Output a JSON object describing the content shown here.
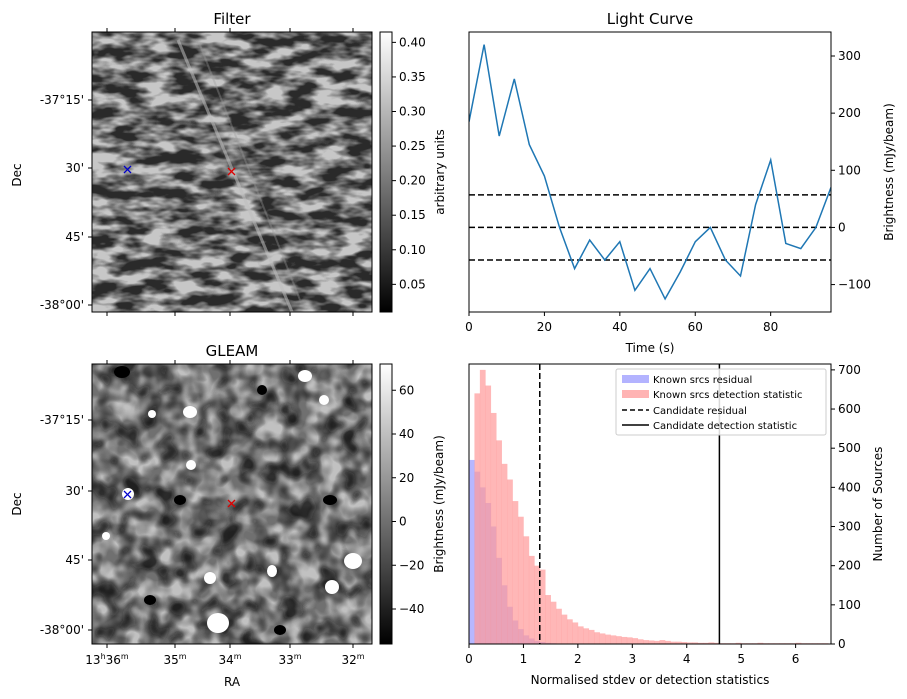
{
  "colors": {
    "line": "#1f77b4",
    "known_residual": "#0000ff",
    "known_detection": "#ff0000",
    "marker_known": "#0000cc",
    "marker_candidate": "#dd0000",
    "blue_hist": "#b3b3ff",
    "red_hist": "#ffb3b3",
    "overlap_hist": "#c77fb0"
  },
  "chart_data": [
    {
      "id": "filter",
      "type": "heatmap",
      "title": "Filter",
      "xlabel": "",
      "ylabel": "Dec",
      "dec_ticks": [
        "-37°15'",
        "30'",
        "45'",
        "-38°00'"
      ],
      "colorbar": {
        "label": "arbitrary units",
        "ticks": [
          "0.05",
          "0.10",
          "0.15",
          "0.20",
          "0.25",
          "0.30",
          "0.35",
          "0.40"
        ],
        "tick_values": [
          0.05,
          0.1,
          0.15,
          0.2,
          0.25,
          0.3,
          0.35,
          0.4
        ],
        "range": [
          0.01,
          0.415
        ]
      },
      "markers": [
        {
          "label": "known-source",
          "symbol": "x",
          "color": "blue"
        },
        {
          "label": "candidate",
          "symbol": "x",
          "color": "red"
        }
      ]
    },
    {
      "id": "light_curve",
      "type": "line",
      "title": "Light Curve",
      "xlabel": "Time (s)",
      "ylabel": "Brightness (mJy/beam)",
      "xlim": [
        0,
        96
      ],
      "ylim": [
        -148,
        342
      ],
      "x_ticks": [
        "0",
        "20",
        "40",
        "60",
        "80"
      ],
      "x_tick_values": [
        0,
        20,
        40,
        60,
        80
      ],
      "y_ticks": [
        "−100",
        "0",
        "100",
        "200",
        "300"
      ],
      "y_tick_values": [
        -100,
        0,
        100,
        200,
        300
      ],
      "x": [
        0,
        4,
        8,
        12,
        16,
        20,
        24,
        28,
        32,
        36,
        40,
        44,
        48,
        52,
        56,
        60,
        64,
        68,
        72,
        76,
        80,
        84,
        88,
        92,
        96
      ],
      "y": [
        185,
        320,
        160,
        260,
        145,
        90,
        0,
        -72,
        -22,
        -57,
        -25,
        -110,
        -72,
        -125,
        -78,
        -25,
        0,
        -57,
        -85,
        40,
        118,
        -28,
        -37,
        0,
        70
      ],
      "hlines": [
        57,
        0,
        -57
      ]
    },
    {
      "id": "gleam",
      "type": "heatmap",
      "title": "GLEAM",
      "xlabel": "RA",
      "ylabel": "Dec",
      "ra_ticks": [
        {
          "main": "13",
          "sup1": "h",
          "mid": "36",
          "sup2": "m"
        },
        {
          "main": "35",
          "sup2": "m"
        },
        {
          "main": "34",
          "sup2": "m"
        },
        {
          "main": "33",
          "sup2": "m"
        },
        {
          "main": "32",
          "sup2": "m"
        }
      ],
      "dec_ticks": [
        "-37°15'",
        "30'",
        "45'",
        "-38°00'"
      ],
      "colorbar": {
        "label": "Brightness (mJy/beam)",
        "ticks": [
          "60",
          "40",
          "20",
          "0",
          "−20",
          "−40"
        ],
        "tick_values": [
          60,
          40,
          20,
          0,
          -20,
          -40
        ],
        "range": [
          -56,
          72
        ]
      },
      "markers": [
        {
          "label": "known-source",
          "symbol": "x",
          "color": "blue"
        },
        {
          "label": "candidate",
          "symbol": "x",
          "color": "red"
        }
      ]
    },
    {
      "id": "histogram",
      "type": "bar",
      "title": "",
      "xlabel": "Normalised stdev or detection statistics",
      "ylabel": "Number of Sources",
      "xlim": [
        0,
        6.65
      ],
      "ylim": [
        0,
        715
      ],
      "x_ticks": [
        "0",
        "1",
        "2",
        "3",
        "4",
        "5",
        "6"
      ],
      "x_tick_values": [
        0,
        1,
        2,
        3,
        4,
        5,
        6
      ],
      "y_ticks": [
        "0",
        "100",
        "200",
        "300",
        "400",
        "500",
        "600",
        "700"
      ],
      "y_tick_values": [
        0,
        100,
        200,
        300,
        400,
        500,
        600,
        700
      ],
      "bin_width": 0.1,
      "series": [
        {
          "name": "Known srcs residual",
          "bin_start": 0.0,
          "values": [
            470,
            440,
            400,
            360,
            300,
            220,
            150,
            95,
            60,
            38,
            22,
            14,
            8,
            5,
            3,
            2,
            1
          ]
        },
        {
          "name": "Known srcs detection statistic",
          "bin_start": 0.1,
          "values": [
            640,
            700,
            660,
            590,
            520,
            460,
            420,
            365,
            325,
            275,
            225,
            200,
            190,
            125,
            108,
            90,
            75,
            63,
            55,
            45,
            40,
            36,
            30,
            27,
            24,
            22,
            20,
            18,
            17,
            15,
            12,
            10,
            9,
            8,
            10,
            8,
            6,
            6,
            5,
            4,
            4,
            3,
            3,
            4,
            3,
            2,
            2,
            2,
            3,
            2,
            2,
            2,
            3,
            2,
            2,
            2,
            2,
            2,
            2,
            3,
            2,
            2,
            2,
            2,
            2
          ]
        }
      ],
      "vlines": [
        {
          "name": "Candidate residual",
          "x": 1.3,
          "style": "dashed"
        },
        {
          "name": "Candidate detection statistic",
          "x": 4.6,
          "style": "solid"
        }
      ],
      "legend": "top-right"
    }
  ]
}
